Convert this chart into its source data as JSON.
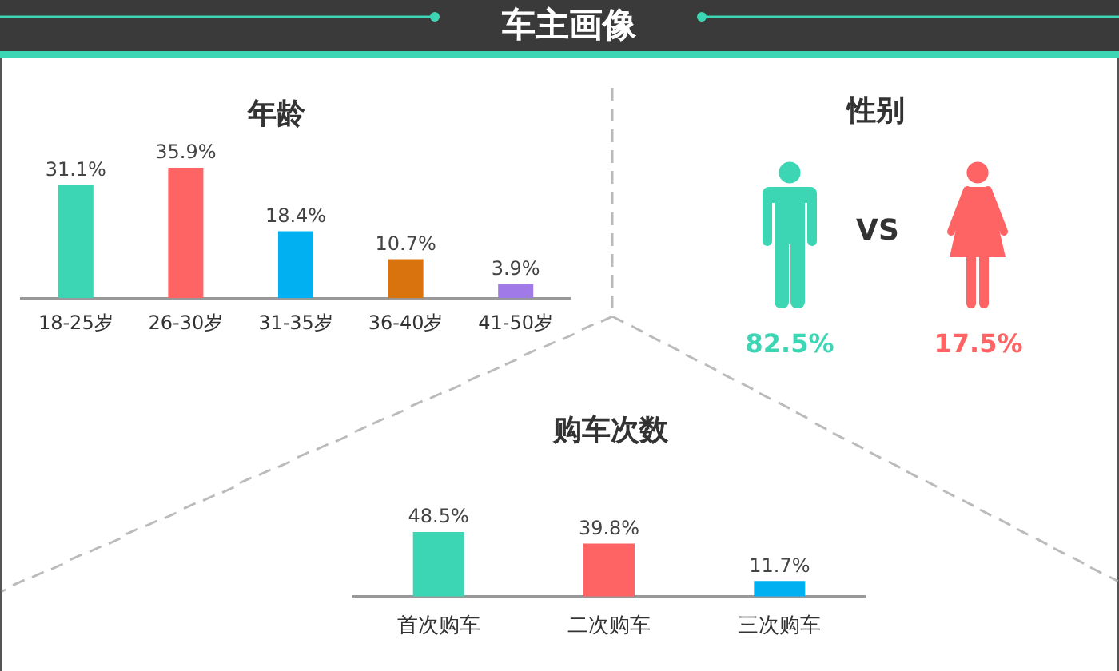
{
  "chart_data": [
    {
      "type": "other",
      "title": "车主画像"
    },
    {
      "type": "bar",
      "title": "年龄",
      "categories": [
        "18-25岁",
        "26-30岁",
        "31-35岁",
        "36-40岁",
        "41-50岁"
      ],
      "values": [
        31.1,
        35.9,
        18.4,
        10.7,
        3.9
      ],
      "colors": [
        "#3dd6b5",
        "#ff6464",
        "#00b0f0",
        "#d9730d",
        "#a07ae6"
      ],
      "value_labels": [
        "31.1%",
        "35.9%",
        "18.4%",
        "10.7%",
        "3.9%"
      ],
      "tick_labels": "x"
    },
    {
      "type": "other",
      "title": "性别",
      "values": [
        82.5,
        17.5
      ],
      "colors": [
        "#3dd6b5",
        "#ff6464"
      ],
      "value_labels": [
        "82.5%",
        "17.5%"
      ],
      "annotations": [
        "VS"
      ]
    },
    {
      "type": "bar",
      "title": "购车次数",
      "categories": [
        "首次购车",
        "二次购车",
        "三次购车"
      ],
      "values": [
        48.5,
        39.8,
        11.7
      ],
      "colors": [
        "#3dd6b5",
        "#ff6464",
        "#00b0f0"
      ],
      "value_labels": [
        "48.5%",
        "39.8%",
        "11.7%"
      ],
      "tick_labels": "x"
    }
  ]
}
